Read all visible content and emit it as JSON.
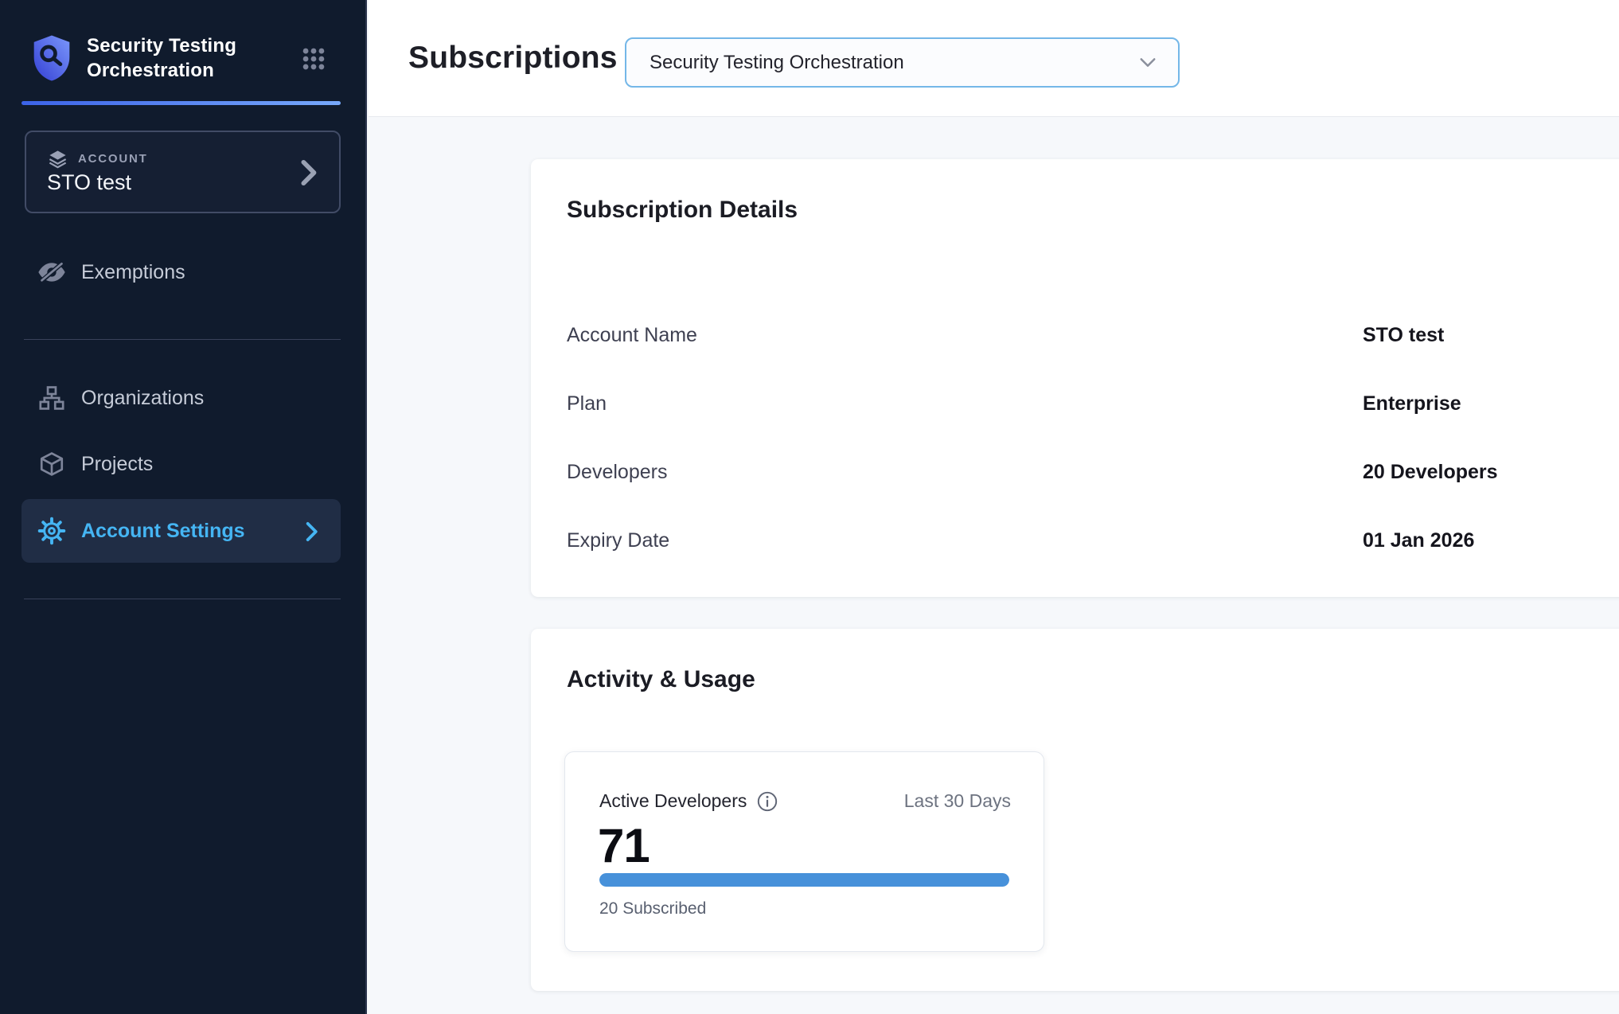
{
  "sidebar": {
    "product_title": "Security Testing Orchestration",
    "account": {
      "label": "ACCOUNT",
      "name": "STO test"
    },
    "nav": [
      {
        "label": "Exemptions"
      },
      {
        "label": "Organizations"
      },
      {
        "label": "Projects"
      },
      {
        "label": "Account Settings",
        "active": true
      }
    ]
  },
  "header": {
    "title": "Subscriptions",
    "module_select": {
      "value": "Security Testing Orchestration"
    }
  },
  "subscription_details": {
    "title": "Subscription Details",
    "rows": [
      {
        "label": "Account Name",
        "value": "STO test"
      },
      {
        "label": "Plan",
        "value": "Enterprise"
      },
      {
        "label": "Developers",
        "value": "20 Developers"
      },
      {
        "label": "Expiry Date",
        "value": "01 Jan 2026"
      }
    ]
  },
  "activity_usage": {
    "title": "Activity & Usage",
    "stat_card": {
      "metric_label": "Active Developers",
      "period": "Last 30 Days",
      "value": "71",
      "subscribed": "20 Subscribed",
      "progress_percent": 100
    }
  },
  "colors": {
    "sidebar_bg": "#101b2d",
    "active_link_blue": "#45b5f3",
    "accent_gradient_start": "#3c63e8",
    "accent_gradient_end": "#77a9fb",
    "dropdown_border_blue": "#74b7e8",
    "progress_blue": "#4791da",
    "content_bg": "#f6f8fb"
  }
}
